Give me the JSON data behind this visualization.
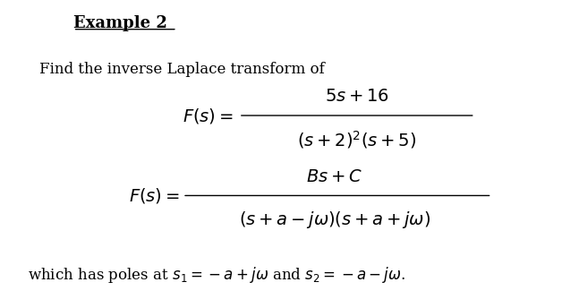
{
  "title": "Example 2",
  "line1": "Find the inverse Laplace transform of",
  "bg_color": "#ffffff",
  "text_color": "#000000",
  "fontsize_title": 13,
  "fontsize_body": 12,
  "fontsize_eq": 13
}
